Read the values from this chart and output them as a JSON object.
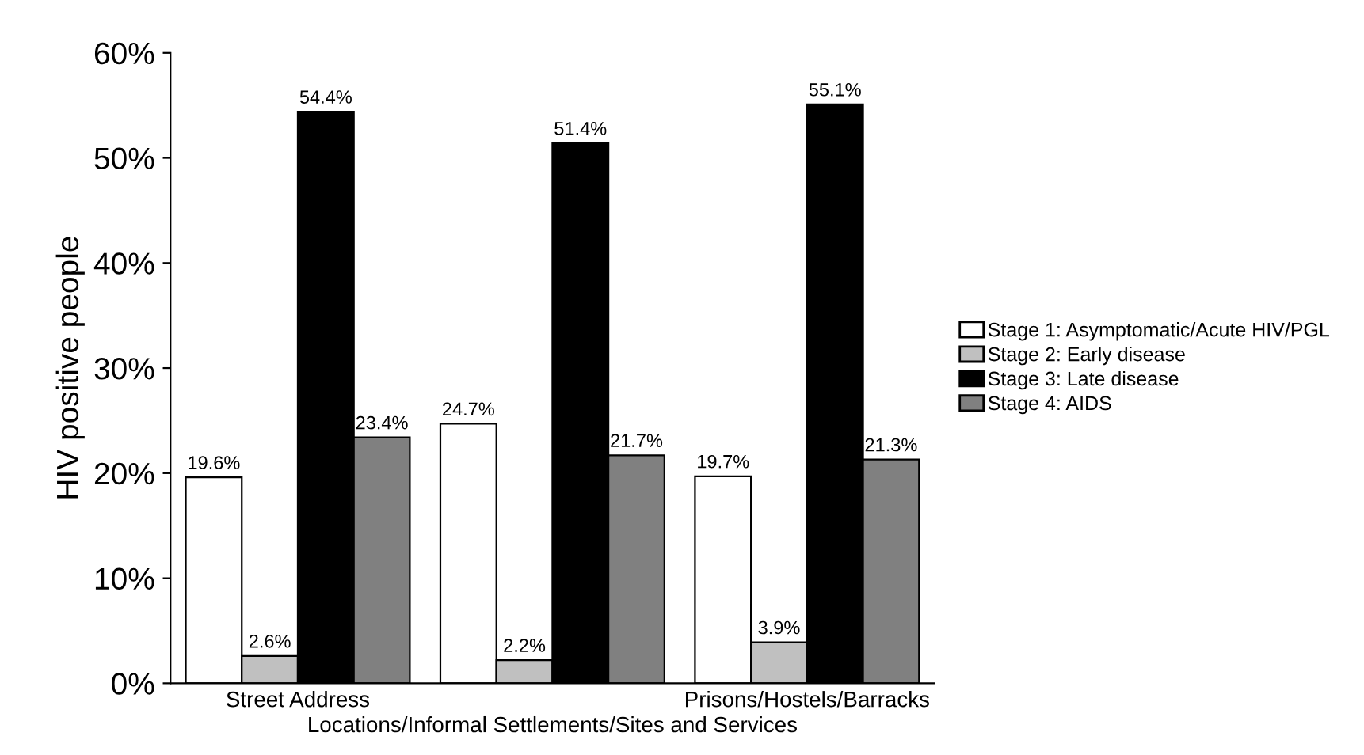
{
  "chart_data": {
    "type": "bar",
    "ylabel": "HIV positive people",
    "categories": [
      "Street Address",
      "Locations/Informal Settlements/Sites and Services",
      "Prisons/Hostels/Barracks"
    ],
    "series": [
      {
        "name": "Stage 1: Asymptomatic/Acute HIV/PGL",
        "color": "#ffffff",
        "values": [
          19.6,
          24.7,
          19.7
        ],
        "value_labels": [
          "19.6%",
          "24.7%",
          "19.7%"
        ]
      },
      {
        "name": "Stage 2: Early disease",
        "color": "#c0c0c0",
        "values": [
          2.6,
          2.2,
          3.9
        ],
        "value_labels": [
          "2.6%",
          "2.2%",
          "3.9%"
        ]
      },
      {
        "name": "Stage 3: Late disease",
        "color": "#000000",
        "values": [
          54.4,
          51.4,
          55.1
        ],
        "value_labels": [
          "54.4%",
          "51.4%",
          "55.1%"
        ]
      },
      {
        "name": "Stage 4: AIDS",
        "color": "#808080",
        "values": [
          23.4,
          21.7,
          21.3
        ],
        "value_labels": [
          "23.4%",
          "21.7%",
          "21.3%"
        ]
      }
    ],
    "ylim": [
      0,
      60
    ],
    "yticks": [
      {
        "value": 0,
        "label": "0%"
      },
      {
        "value": 10,
        "label": "10%"
      },
      {
        "value": 20,
        "label": "20%"
      },
      {
        "value": 30,
        "label": "30%"
      },
      {
        "value": 40,
        "label": "40%"
      },
      {
        "value": 50,
        "label": "50%"
      },
      {
        "value": 60,
        "label": "60%"
      }
    ],
    "grid": false,
    "legend": "right"
  }
}
